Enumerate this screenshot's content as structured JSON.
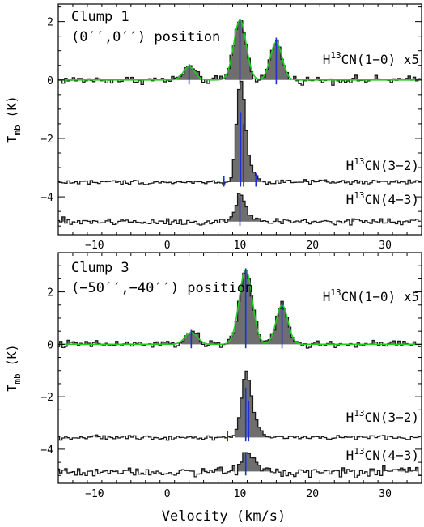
{
  "chart_data": [
    {
      "type": "line",
      "panel": "top",
      "annotation_lines": [
        "Clump 1",
        "(0′′,0′′) position"
      ],
      "xlabel": "",
      "ylabel": "T_mb (K)",
      "xlim": [
        -15,
        35
      ],
      "ylim": [
        -5.3,
        2.6
      ],
      "x_ticks": [
        -10,
        0,
        10,
        20,
        30
      ],
      "y_ticks": [
        -4,
        -2,
        0,
        2
      ],
      "fit_color": "#22cc22",
      "component_color": "#1f2fd0",
      "fill_color": "#6e6e6e",
      "series": [
        {
          "label": "H13CN(1−0) x5",
          "offset": 0.0,
          "components": [
            {
              "center": 3.0,
              "amp": 0.45,
              "width": 0.8
            },
            {
              "center": 10.0,
              "amp": 2.05,
              "width": 0.85
            },
            {
              "center": 15.0,
              "amp": 1.3,
              "width": 0.8
            }
          ],
          "markers": [
            3.0,
            10.0,
            15.0
          ],
          "marker_height": [
            0.55,
            2.1,
            1.45
          ],
          "noise": 0.06
        },
        {
          "label": "H13CN(3−2)",
          "offset": -3.5,
          "components": [
            {
              "center": 10.1,
              "amp": 3.2,
              "width": 0.55
            },
            {
              "center": 11.0,
              "amp": 0.6,
              "width": 0.9
            }
          ],
          "markers": [
            7.8,
            10.1,
            10.5,
            12.2
          ],
          "marker_height": [
            0.2,
            2.4,
            2.0,
            0.3
          ],
          "noise": 0.035
        },
        {
          "label": "H13CN(4−3)",
          "offset": -4.85,
          "components": [
            {
              "center": 10.0,
              "amp": 0.75,
              "width": 0.6
            },
            {
              "center": 11.0,
              "amp": 0.25,
              "width": 0.9
            }
          ],
          "markers": [
            10.0
          ],
          "marker_height": [
            0.8
          ],
          "noise": 0.06
        }
      ]
    },
    {
      "type": "line",
      "panel": "bottom",
      "annotation_lines": [
        "Clump 3",
        "(−50′′,−40′′) position"
      ],
      "xlabel": "Velocity (km/s)",
      "ylabel": "T_mb (K)",
      "xlim": [
        -15,
        35
      ],
      "ylim": [
        -5.3,
        3.5
      ],
      "x_ticks": [
        -10,
        0,
        10,
        20,
        30
      ],
      "y_ticks": [
        -4,
        -2,
        0,
        2
      ],
      "fit_color": "#22cc22",
      "component_color": "#1f2fd0",
      "fill_color": "#6e6e6e",
      "series": [
        {
          "label": "H13CN(1−0) x5",
          "offset": 0.0,
          "components": [
            {
              "center": 3.3,
              "amp": 0.45,
              "width": 0.85
            },
            {
              "center": 10.8,
              "amp": 2.85,
              "width": 0.9
            },
            {
              "center": 15.8,
              "amp": 1.5,
              "width": 0.8
            }
          ],
          "markers": [
            3.3,
            10.8,
            15.8
          ],
          "marker_height": [
            0.55,
            2.9,
            1.55
          ],
          "noise": 0.07
        },
        {
          "label": "H13CN(3−2)",
          "offset": -3.55,
          "components": [
            {
              "center": 10.8,
              "amp": 2.1,
              "width": 0.65
            },
            {
              "center": 11.8,
              "amp": 0.6,
              "width": 0.9
            }
          ],
          "markers": [
            8.3,
            10.8,
            11.2
          ],
          "marker_height": [
            0.25,
            1.9,
            1.4
          ],
          "noise": 0.035
        },
        {
          "label": "H13CN(4−3)",
          "offset": -4.85,
          "components": [
            {
              "center": 10.8,
              "amp": 0.65,
              "width": 0.6
            },
            {
              "center": 12.0,
              "amp": 0.3,
              "width": 1.0
            }
          ],
          "markers": [
            10.8
          ],
          "marker_height": [
            0.7
          ],
          "noise": 0.08
        }
      ]
    }
  ]
}
